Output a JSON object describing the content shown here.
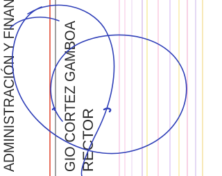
{
  "document": {
    "department": "ADMINISTRACIÓN Y FINAN",
    "name": "GIO CORTEZ GAMBOA",
    "position": "RECTOR"
  }
}
